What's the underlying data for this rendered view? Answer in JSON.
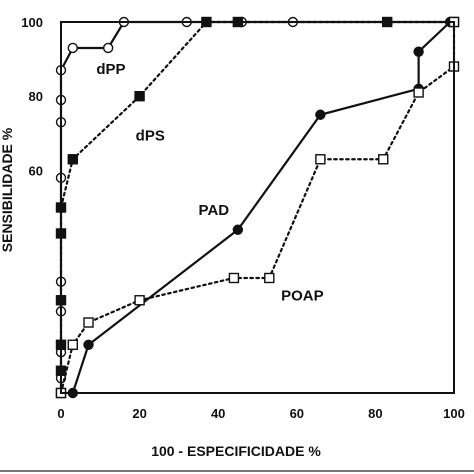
{
  "chart_data": {
    "type": "line",
    "xlabel": "100 - ESPECIFICIDADE %",
    "ylabel": "SENSIBILIDADE %",
    "xlim": [
      0,
      100
    ],
    "ylim": [
      0,
      100
    ],
    "xticks": [
      "0",
      "20",
      "40",
      "60",
      "80",
      "100"
    ],
    "yticks": [
      {
        "value": 60,
        "label": "60"
      },
      {
        "value": 80,
        "label": "80"
      },
      {
        "value": 100,
        "label": "100"
      }
    ],
    "grid": false,
    "series": [
      {
        "name": "dPP",
        "line": "solid",
        "marker": "circle-open",
        "color": "#111111",
        "points": [
          [
            0,
            0
          ],
          [
            0,
            4
          ],
          [
            0,
            11
          ],
          [
            0,
            22
          ],
          [
            0,
            30
          ],
          [
            0,
            58
          ],
          [
            0,
            73
          ],
          [
            0,
            79
          ],
          [
            0,
            87
          ],
          [
            3,
            93
          ],
          [
            12,
            93
          ],
          [
            16,
            100
          ],
          [
            32,
            100
          ],
          [
            46,
            100
          ],
          [
            59,
            100
          ],
          [
            100,
            100
          ]
        ]
      },
      {
        "name": "dPS",
        "line": "dotted",
        "marker": "square-filled",
        "color": "#111111",
        "points": [
          [
            0,
            0
          ],
          [
            0,
            6
          ],
          [
            0,
            13
          ],
          [
            0,
            25
          ],
          [
            0,
            43
          ],
          [
            0,
            50
          ],
          [
            3,
            63
          ],
          [
            20,
            80
          ],
          [
            37,
            100
          ],
          [
            45,
            100
          ],
          [
            83,
            100
          ],
          [
            100,
            100
          ]
        ]
      },
      {
        "name": "PAD",
        "line": "solid",
        "marker": "circle-filled",
        "color": "#111111",
        "points": [
          [
            3,
            0
          ],
          [
            7,
            13
          ],
          [
            45,
            44
          ],
          [
            66,
            75
          ],
          [
            91,
            82
          ],
          [
            91,
            92
          ],
          [
            99,
            100
          ]
        ]
      },
      {
        "name": "POAP",
        "line": "dotted",
        "marker": "square-open",
        "color": "#111111",
        "points": [
          [
            0,
            0
          ],
          [
            3,
            13
          ],
          [
            7,
            19
          ],
          [
            20,
            25
          ],
          [
            44,
            31
          ],
          [
            53,
            31
          ],
          [
            66,
            63
          ],
          [
            82,
            63
          ],
          [
            91,
            81
          ],
          [
            100,
            88
          ],
          [
            100,
            100
          ]
        ]
      }
    ]
  }
}
